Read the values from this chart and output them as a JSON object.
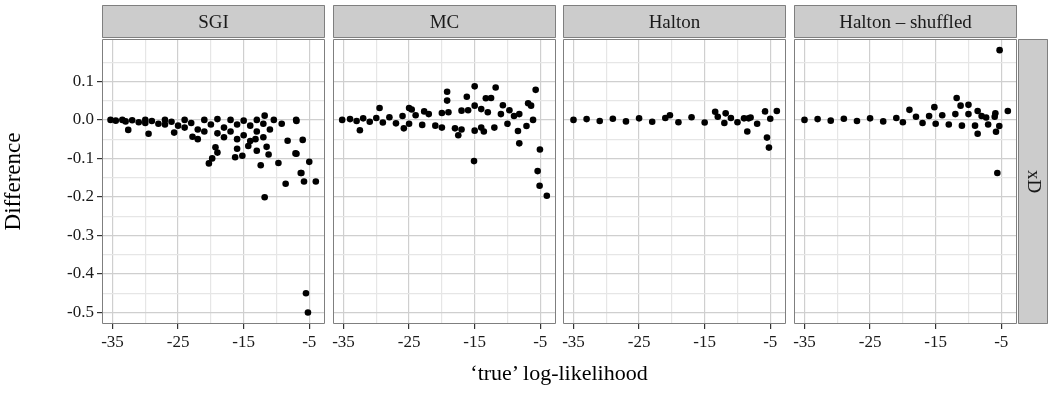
{
  "chart_data": [
    {
      "type": "scatter",
      "title": "SGI",
      "ylabel": "Difference",
      "xlim": [
        -36.6,
        -2.6
      ],
      "xticks": [
        -35,
        {
          "value": -30,
          "label": null
        },
        -25,
        {
          "value": -20,
          "label": null
        },
        -15,
        {
          "value": -10,
          "label": null
        },
        -5
      ],
      "ylim": [
        -0.53,
        0.21
      ],
      "yticks": [
        {
          "value": 0.15,
          "label": null
        },
        0.1,
        {
          "value": 0.05,
          "label": null
        },
        {
          "value": 0,
          "label": "0.0"
        },
        {
          "value": -0.05,
          "label": null
        },
        -0.1,
        {
          "value": -0.15,
          "label": null
        },
        -0.2,
        {
          "value": -0.25,
          "label": null
        },
        -0.3,
        {
          "value": -0.35,
          "label": null
        },
        -0.4,
        {
          "value": -0.45,
          "label": null
        },
        -0.5
      ],
      "grid": true,
      "marker": "circle",
      "series": [
        {
          "color": "#000000",
          "x": [
            -35.3,
            -34.5,
            -33.5,
            -33,
            -32,
            -31,
            -30,
            -30,
            -29,
            -28,
            -27,
            -27,
            -26,
            -25,
            -24,
            -24,
            -23,
            -22,
            -21,
            -21,
            -20,
            -19,
            -19,
            -18,
            -18,
            -17,
            -17,
            -16,
            -16,
            -15,
            -15,
            -14,
            -14,
            -13,
            -13,
            -12,
            -12,
            -11,
            -32.6,
            -29.5,
            -25.6,
            -22.8,
            -22,
            -20.3,
            -19.8,
            -19.3,
            -19,
            -16.3,
            -16,
            -15.2,
            -12.4,
            -11.8,
            -9.7,
            -8.6,
            -6.3,
            -7.1,
            -8.3,
            -11.8,
            -10.4,
            -9.2,
            -7,
            -13,
            -11.5,
            -11.2,
            -14.3,
            -13.2,
            -6.95,
            -6,
            -6.95,
            -5,
            -6.2,
            -5.8,
            -4,
            -5.5,
            -5.2
          ],
          "values": [
            0,
            -0.002,
            0,
            -0.004,
            -0.001,
            -0.006,
            0,
            -0.008,
            -0.003,
            -0.01,
            0,
            -0.012,
            -0.005,
            -0.015,
            0,
            -0.02,
            -0.008,
            -0.025,
            0,
            -0.03,
            -0.012,
            -0.035,
            0.002,
            -0.02,
            -0.045,
            0,
            -0.03,
            -0.05,
            -0.012,
            -0.002,
            -0.04,
            -0.055,
            -0.015,
            0,
            -0.03,
            -0.045,
            -0.01,
            -0.025,
            -0.026,
            -0.036,
            -0.033,
            -0.044,
            -0.05,
            -0.113,
            -0.1,
            -0.071,
            -0.085,
            -0.097,
            -0.075,
            -0.093,
            -0.118,
            -0.201,
            -0.112,
            -0.166,
            -0.138,
            -0.087,
            -0.054,
            0.011,
            0,
            -0.01,
            0,
            -0.08,
            -0.07,
            -0.09,
            -0.068,
            -0.05,
            -0.003,
            -0.052,
            -0.088,
            -0.109,
            -0.138,
            -0.16,
            -0.16,
            -0.45,
            -0.5
          ]
        }
      ]
    },
    {
      "type": "scatter",
      "title": "MC",
      "xlabel": "‘true’ log-likelihood",
      "xlim": [
        -36.6,
        -2.6
      ],
      "xticks": [
        -35,
        {
          "value": -30,
          "label": null
        },
        -25,
        {
          "value": -20,
          "label": null
        },
        -15,
        {
          "value": -10,
          "label": null
        },
        -5
      ],
      "ylim": [
        -0.53,
        0.21
      ],
      "yticks": [
        {
          "value": 0.15,
          "label": null
        },
        0.1,
        {
          "value": 0.05,
          "label": null
        },
        0,
        {
          "value": -0.05,
          "label": null
        },
        -0.1,
        {
          "value": -0.15,
          "label": null
        },
        -0.2,
        {
          "value": -0.25,
          "label": null
        },
        -0.3,
        {
          "value": -0.35,
          "label": null
        },
        -0.4,
        {
          "value": -0.45,
          "label": null
        },
        -0.5
      ],
      "tick_labels": "x",
      "grid": true,
      "marker": "circle",
      "series": [
        {
          "color": "#000000",
          "x": [
            -35.2,
            -34,
            -33,
            -32,
            -31,
            -30,
            -29,
            -28,
            -27,
            -26,
            -25,
            -24,
            -23,
            -22,
            -21,
            -20,
            -20,
            -19,
            -18,
            -17,
            -17,
            -16,
            -15,
            -14,
            -14,
            -13,
            -12,
            -11,
            -10,
            -9,
            -32.5,
            -29.5,
            -25,
            -24.6,
            -22.7,
            -25.8,
            -19.2,
            -19.2,
            -17.5,
            -16.2,
            -15,
            -15.1,
            -15,
            -13.3,
            -12.5,
            -13.6,
            -11.8,
            -10.7,
            -9.7,
            -8.2,
            -8.4,
            -8.2,
            -7.1,
            -6.85,
            -6.4,
            -5.7,
            -6.1,
            -5.05,
            -5.4,
            -5.1,
            -4
          ],
          "values": [
            0,
            0.002,
            -0.003,
            0.004,
            -0.005,
            0.005,
            -0.007,
            0.007,
            -0.009,
            0.01,
            -0.01,
            0.012,
            -0.013,
            0.015,
            -0.015,
            0.018,
            -0.02,
            0.02,
            -0.022,
            0.024,
            -0.025,
            0.025,
            -0.028,
            0.028,
            -0.02,
            0.02,
            -0.02,
            0.015,
            -0.01,
            0.01,
            -0.027,
            0.031,
            0.031,
            0.027,
            0.022,
            -0.022,
            0.073,
            0.05,
            -0.04,
            0.06,
            0.087,
            -0.107,
            0.037,
            0.056,
            0.057,
            -0.03,
            0.084,
            0.038,
            0.025,
            0.015,
            -0.029,
            -0.061,
            -0.016,
            0.043,
            0.037,
            0.078,
            0,
            -0.077,
            -0.133,
            -0.171,
            -0.197
          ]
        }
      ]
    },
    {
      "type": "scatter",
      "title": "Halton",
      "xlim": [
        -36.6,
        -2.6
      ],
      "xticks": [
        -35,
        {
          "value": -30,
          "label": null
        },
        -25,
        {
          "value": -20,
          "label": null
        },
        -15,
        {
          "value": -10,
          "label": null
        },
        -5
      ],
      "ylim": [
        -0.53,
        0.21
      ],
      "yticks": [
        {
          "value": 0.15,
          "label": null
        },
        0.1,
        {
          "value": 0.05,
          "label": null
        },
        0,
        {
          "value": -0.05,
          "label": null
        },
        -0.1,
        {
          "value": -0.15,
          "label": null
        },
        -0.2,
        {
          "value": -0.25,
          "label": null
        },
        -0.3,
        {
          "value": -0.35,
          "label": null
        },
        -0.4,
        {
          "value": -0.45,
          "label": null
        },
        -0.5
      ],
      "tick_labels": "x",
      "grid": true,
      "marker": "circle",
      "series": [
        {
          "color": "#000000",
          "x": [
            -35,
            -33,
            -31,
            -29,
            -27,
            -25,
            -23,
            -21,
            -19,
            -17,
            -15,
            -13,
            -12,
            -11,
            -10,
            -9,
            -8,
            -7,
            -13.4,
            -11.8,
            -8.5,
            -8.3,
            -5.8,
            -4,
            -5,
            -5.5,
            -5.2,
            -20.3
          ],
          "values": [
            0,
            0.002,
            -0.003,
            0.003,
            -0.004,
            0.004,
            -0.005,
            0.005,
            -0.006,
            0.007,
            -0.007,
            0.008,
            -0.008,
            0.005,
            -0.006,
            0.004,
            0.006,
            -0.01,
            0.021,
            0.017,
            -0.03,
            0.004,
            0.022,
            0.023,
            0.003,
            -0.046,
            -0.072,
            0.012
          ]
        }
      ]
    },
    {
      "type": "scatter",
      "title": "Halton – shuffled",
      "annotations": [
        "xD"
      ],
      "xlim": [
        -36.6,
        -2.6
      ],
      "xticks": [
        -35,
        {
          "value": -30,
          "label": null
        },
        -25,
        {
          "value": -20,
          "label": null
        },
        -15,
        {
          "value": -10,
          "label": null
        },
        -5
      ],
      "ylim": [
        -0.53,
        0.21
      ],
      "yticks": [
        {
          "value": 0.15,
          "label": null
        },
        0.1,
        {
          "value": 0.05,
          "label": null
        },
        0,
        {
          "value": -0.05,
          "label": null
        },
        -0.1,
        {
          "value": -0.15,
          "label": null
        },
        -0.2,
        {
          "value": -0.25,
          "label": null
        },
        -0.3,
        {
          "value": -0.35,
          "label": null
        },
        -0.4,
        {
          "value": -0.45,
          "label": null
        },
        -0.5
      ],
      "tick_labels": "x",
      "grid": true,
      "marker": "circle",
      "series": [
        {
          "color": "#000000",
          "x": [
            -35,
            -33,
            -31,
            -29,
            -27,
            -25,
            -23,
            -21,
            -20,
            -18,
            -17,
            -16,
            -15,
            -14,
            -13,
            -12,
            -11,
            -10,
            -9,
            -8,
            -7,
            -6,
            -5.25,
            -5.6,
            -11.8,
            -11.2,
            -10,
            -4,
            -8.6,
            -5.8,
            -5.3,
            -5.9,
            -15.2,
            -19,
            -8.6,
            -7.3
          ],
          "values": [
            0,
            0.002,
            -0.002,
            0.003,
            -0.003,
            0.004,
            -0.004,
            0.005,
            -0.006,
            0.008,
            -0.008,
            0.01,
            -0.01,
            0.012,
            -0.012,
            0.015,
            -0.015,
            0.015,
            -0.015,
            0.01,
            -0.012,
            0.008,
            0.181,
            -0.138,
            0.057,
            0.037,
            0.039,
            0.023,
            -0.036,
            -0.031,
            -0.016,
            0.017,
            0.033,
            0.026,
            0.023,
            0.006
          ]
        }
      ]
    }
  ]
}
